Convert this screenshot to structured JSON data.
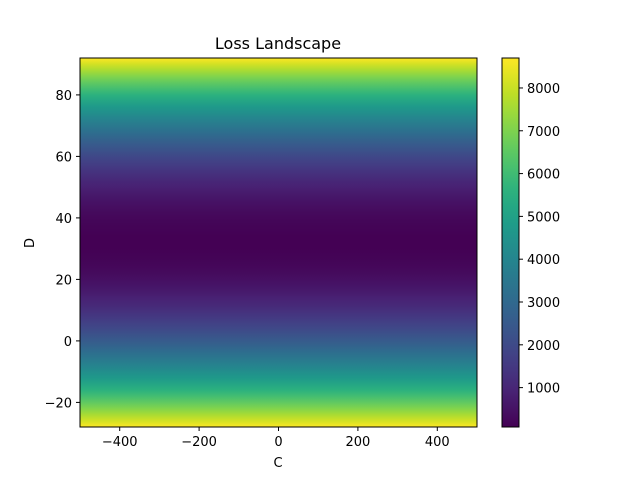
{
  "chart_data": {
    "type": "heatmap",
    "title": "Loss Landscape",
    "xlabel": "C",
    "ylabel": "D",
    "xlim": [
      -500,
      500
    ],
    "ylim": [
      -28,
      92
    ],
    "x_ticks": [
      -400,
      -200,
      0,
      200,
      400
    ],
    "y_ticks": [
      -20,
      0,
      20,
      40,
      60,
      80
    ],
    "colormap": "viridis",
    "color_range": [
      80,
      8700
    ],
    "colorbar_ticks": [
      1000,
      2000,
      3000,
      4000,
      5000,
      6000,
      7000,
      8000
    ],
    "value_profile": {
      "note_axis": "D",
      "min_at_D": 32,
      "value_at_D_-28": 8700,
      "value_at_D_92": 8700,
      "min_value": 80
    },
    "grid": false,
    "colorbar_position": "right"
  }
}
